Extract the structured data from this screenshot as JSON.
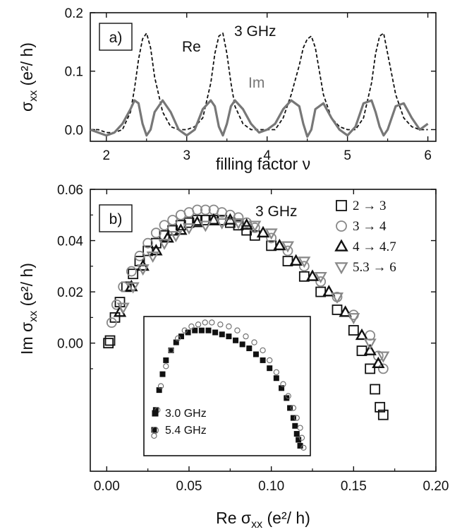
{
  "chart_data": [
    {
      "panel": "a)",
      "type": "line",
      "xlabel": "filling factor ν",
      "ylabel_main": "σ",
      "ylabel_sub": "xx",
      "ylabel_unit": " (e²/ h)",
      "xlim": [
        1.8,
        6.1
      ],
      "ylim": [
        -0.02,
        0.2
      ],
      "xticks": [
        "2",
        "3",
        "4",
        "5",
        "6"
      ],
      "yticks": [
        "0.0",
        "0.1",
        "0.2"
      ],
      "annotations": [
        "Re",
        "3 GHz",
        "Im"
      ],
      "series": [
        {
          "label": "Re",
          "style": "dashed",
          "color": "#111111",
          "x": [
            1.8,
            1.9,
            2.0,
            2.1,
            2.2,
            2.3,
            2.35,
            2.4,
            2.45,
            2.5,
            2.55,
            2.6,
            2.7,
            2.8,
            2.9,
            3.0,
            3.1,
            3.2,
            3.3,
            3.35,
            3.4,
            3.45,
            3.5,
            3.55,
            3.6,
            3.7,
            3.8,
            3.9,
            4.0,
            4.1,
            4.2,
            4.3,
            4.4,
            4.45,
            4.5,
            4.55,
            4.6,
            4.7,
            4.8,
            4.9,
            5.0,
            5.1,
            5.2,
            5.3,
            5.35,
            5.4,
            5.45,
            5.5,
            5.6,
            5.7,
            5.8,
            5.9,
            6.0
          ],
          "y": [
            0.0,
            0.0,
            -0.005,
            -0.005,
            0.0,
            0.03,
            0.07,
            0.12,
            0.155,
            0.165,
            0.14,
            0.09,
            0.03,
            0.005,
            0.0,
            0.0,
            0.005,
            0.02,
            0.08,
            0.13,
            0.16,
            0.165,
            0.13,
            0.08,
            0.04,
            0.01,
            0.0,
            0.0,
            0.0,
            0.0,
            0.02,
            0.06,
            0.11,
            0.14,
            0.155,
            0.16,
            0.14,
            0.06,
            0.02,
            0.005,
            0.0,
            0.0,
            0.02,
            0.08,
            0.13,
            0.16,
            0.165,
            0.13,
            0.06,
            0.02,
            0.005,
            0.0,
            0.0
          ]
        },
        {
          "label": "Im",
          "style": "solid",
          "color": "#777777",
          "x": [
            1.8,
            1.9,
            2.0,
            2.1,
            2.2,
            2.3,
            2.35,
            2.4,
            2.45,
            2.5,
            2.55,
            2.6,
            2.7,
            2.8,
            2.9,
            3.0,
            3.1,
            3.2,
            3.3,
            3.35,
            3.4,
            3.45,
            3.5,
            3.55,
            3.6,
            3.7,
            3.8,
            3.9,
            4.0,
            4.1,
            4.2,
            4.3,
            4.4,
            4.45,
            4.5,
            4.55,
            4.6,
            4.7,
            4.8,
            4.9,
            5.0,
            5.1,
            5.2,
            5.3,
            5.35,
            5.4,
            5.45,
            5.5,
            5.6,
            5.7,
            5.8,
            5.9,
            6.0
          ],
          "y": [
            0.0,
            -0.005,
            -0.01,
            -0.005,
            0.01,
            0.035,
            0.05,
            0.045,
            0.01,
            -0.01,
            0.0,
            0.03,
            0.05,
            0.03,
            0.0,
            -0.01,
            0.0,
            0.035,
            0.05,
            0.04,
            0.005,
            -0.01,
            0.01,
            0.04,
            0.05,
            0.035,
            0.01,
            -0.005,
            0.0,
            0.01,
            0.035,
            0.05,
            0.04,
            0.01,
            -0.012,
            0.0,
            0.035,
            0.045,
            0.02,
            0.0,
            -0.01,
            0.005,
            0.045,
            0.05,
            0.03,
            0.005,
            -0.01,
            0.0,
            0.04,
            0.045,
            0.02,
            0.0,
            0.01
          ]
        }
      ]
    },
    {
      "panel": "b)",
      "type": "scatter",
      "xlabel_main": "Re σ",
      "xlabel_sub": "xx",
      "xlabel_unit": " (e²/ h)",
      "ylabel_main": "Im σ",
      "ylabel_sub": "xx",
      "ylabel_unit": " (e²/ h)",
      "xlim": [
        -0.01,
        0.2
      ],
      "ylim": [
        -0.05,
        0.06
      ],
      "xticks": [
        "0.00",
        "0.05",
        "0.10",
        "0.15",
        "0.20"
      ],
      "yticks": [
        "0.00",
        "0.02",
        "0.04",
        "0.06"
      ],
      "annotations": [
        "3 GHz"
      ],
      "legend_position": "top-right",
      "series": [
        {
          "name": "2 → 3",
          "marker": "square",
          "color": "#111111",
          "x": [
            0.001,
            0.002,
            0.005,
            0.008,
            0.012,
            0.016,
            0.02,
            0.025,
            0.03,
            0.035,
            0.04,
            0.045,
            0.05,
            0.055,
            0.06,
            0.065,
            0.07,
            0.075,
            0.08,
            0.085,
            0.09,
            0.1,
            0.11,
            0.12,
            0.13,
            0.14,
            0.15,
            0.155,
            0.16,
            0.163,
            0.166,
            0.168
          ],
          "y": [
            0.0,
            0.001,
            0.01,
            0.016,
            0.022,
            0.027,
            0.032,
            0.036,
            0.039,
            0.042,
            0.044,
            0.046,
            0.047,
            0.048,
            0.048,
            0.048,
            0.048,
            0.047,
            0.046,
            0.044,
            0.042,
            0.038,
            0.032,
            0.026,
            0.02,
            0.013,
            0.005,
            -0.003,
            -0.01,
            -0.018,
            -0.025,
            -0.028
          ]
        },
        {
          "name": "3 → 4",
          "marker": "circle",
          "color": "#888888",
          "x": [
            0.003,
            0.006,
            0.01,
            0.015,
            0.02,
            0.025,
            0.03,
            0.035,
            0.04,
            0.045,
            0.05,
            0.055,
            0.06,
            0.065,
            0.07,
            0.075,
            0.08,
            0.085,
            0.09,
            0.1,
            0.11,
            0.12,
            0.13,
            0.14,
            0.15,
            0.16,
            0.165,
            0.168
          ],
          "y": [
            0.008,
            0.015,
            0.022,
            0.028,
            0.034,
            0.039,
            0.043,
            0.046,
            0.048,
            0.05,
            0.051,
            0.052,
            0.052,
            0.052,
            0.051,
            0.05,
            0.049,
            0.047,
            0.045,
            0.041,
            0.036,
            0.03,
            0.024,
            0.018,
            0.011,
            0.003,
            -0.005,
            -0.01
          ]
        },
        {
          "name": "4 → 4.7",
          "marker": "triangle-up",
          "color": "#111111",
          "x": [
            0.008,
            0.015,
            0.022,
            0.03,
            0.037,
            0.045,
            0.055,
            0.065,
            0.075,
            0.085,
            0.095,
            0.105,
            0.115,
            0.125,
            0.135,
            0.145,
            0.155,
            0.16,
            0.165
          ],
          "y": [
            0.012,
            0.022,
            0.03,
            0.036,
            0.041,
            0.044,
            0.047,
            0.048,
            0.048,
            0.046,
            0.043,
            0.038,
            0.032,
            0.026,
            0.02,
            0.012,
            0.003,
            -0.003,
            -0.008
          ]
        },
        {
          "name": "5.3 → 6",
          "marker": "triangle-down",
          "color": "#888888",
          "x": [
            0.01,
            0.016,
            0.022,
            0.028,
            0.035,
            0.042,
            0.05,
            0.06,
            0.07,
            0.08,
            0.09,
            0.1,
            0.11,
            0.12,
            0.13,
            0.14,
            0.15,
            0.16,
            0.168
          ],
          "y": [
            0.014,
            0.022,
            0.029,
            0.034,
            0.039,
            0.042,
            0.045,
            0.046,
            0.047,
            0.047,
            0.046,
            0.043,
            0.038,
            0.032,
            0.026,
            0.018,
            0.01,
            0.0,
            -0.005
          ]
        }
      ]
    },
    {
      "panel": "inset",
      "type": "scatter",
      "legend_position": "bottom-left",
      "series": [
        {
          "name": "3.0 GHz",
          "marker": "filled-square",
          "color": "#111111",
          "x": [
            0.026,
            0.027,
            0.029,
            0.031,
            0.033,
            0.036,
            0.039,
            0.042,
            0.046,
            0.05,
            0.054,
            0.058,
            0.062,
            0.066,
            0.07,
            0.074,
            0.078,
            0.082,
            0.086,
            0.09,
            0.094,
            0.098,
            0.101,
            0.104,
            0.106,
            0.108,
            0.109,
            0.11,
            0.111,
            0.112
          ],
          "y": [
            -0.035,
            -0.025,
            -0.015,
            -0.007,
            0.0,
            0.005,
            0.009,
            0.012,
            0.014,
            0.015,
            0.015,
            0.015,
            0.014,
            0.013,
            0.012,
            0.01,
            0.008,
            0.006,
            0.003,
            0.0,
            -0.004,
            -0.009,
            -0.014,
            -0.019,
            -0.024,
            -0.029,
            -0.033,
            -0.037,
            -0.04,
            -0.043
          ]
        },
        {
          "name": "5.4 GHz",
          "marker": "open-circle",
          "color": "#666666",
          "x": [
            0.026,
            0.028,
            0.03,
            0.033,
            0.036,
            0.04,
            0.044,
            0.048,
            0.052,
            0.056,
            0.06,
            0.065,
            0.07,
            0.075,
            0.08,
            0.085,
            0.09,
            0.094,
            0.098,
            0.102,
            0.105,
            0.108,
            0.11,
            0.112,
            0.113,
            0.114
          ],
          "y": [
            -0.038,
            -0.025,
            -0.013,
            -0.003,
            0.005,
            0.011,
            0.015,
            0.017,
            0.018,
            0.019,
            0.019,
            0.018,
            0.017,
            0.015,
            0.012,
            0.009,
            0.005,
            0.0,
            -0.006,
            -0.012,
            -0.018,
            -0.024,
            -0.029,
            -0.034,
            -0.039,
            -0.044
          ]
        }
      ]
    }
  ]
}
